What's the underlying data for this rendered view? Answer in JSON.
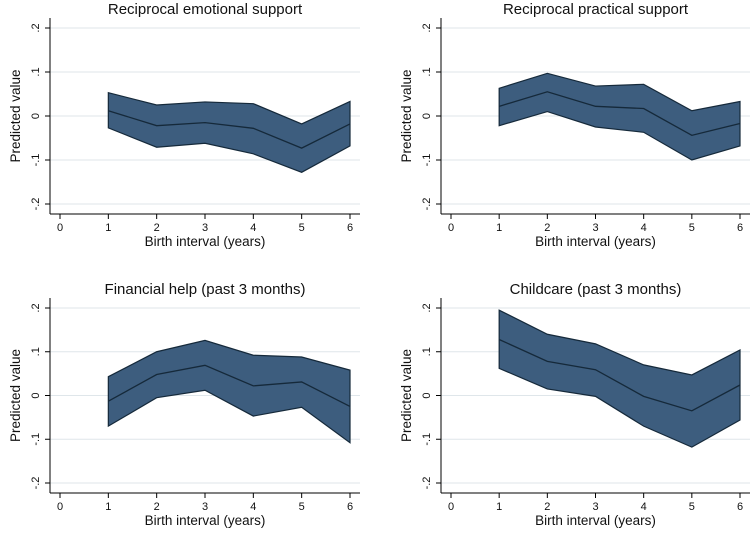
{
  "chart_data": [
    {
      "type": "area",
      "title": "Reciprocal emotional support",
      "xlabel": "Birth interval (years)",
      "ylabel": "Predicted value",
      "x_ticks": [
        0,
        1,
        2,
        3,
        4,
        5,
        6
      ],
      "x_tick_labels": [
        "0",
        "1",
        "2",
        "3",
        "4",
        "5",
        "6"
      ],
      "y_ticks": [
        -0.2,
        -0.1,
        0,
        0.1,
        0.2
      ],
      "y_tick_labels": [
        "-.2",
        "-.1",
        "0",
        ".1",
        ".2"
      ],
      "xlim": [
        0,
        6
      ],
      "ylim": [
        -0.2,
        0.2
      ],
      "grid": true,
      "band_color": "#3d5d7e",
      "line_color": "#15293a",
      "series": [
        {
          "x": [
            1,
            2,
            3,
            4,
            5,
            6
          ],
          "estimate": [
            0.012,
            -0.022,
            -0.015,
            -0.028,
            -0.073,
            -0.018
          ],
          "lower": [
            -0.027,
            -0.071,
            -0.062,
            -0.086,
            -0.128,
            -0.068
          ],
          "upper": [
            0.053,
            0.025,
            0.032,
            0.028,
            -0.018,
            0.033
          ]
        }
      ]
    },
    {
      "type": "area",
      "title": "Reciprocal practical support",
      "xlabel": "Birth interval (years)",
      "ylabel": "Predicted value",
      "x_ticks": [
        0,
        1,
        2,
        3,
        4,
        5,
        6
      ],
      "x_tick_labels": [
        "0",
        "1",
        "2",
        "3",
        "4",
        "5",
        "6"
      ],
      "y_ticks": [
        -0.2,
        -0.1,
        0,
        0.1,
        0.2
      ],
      "y_tick_labels": [
        "-.2",
        "-.1",
        "0",
        ".1",
        ".2"
      ],
      "xlim": [
        0,
        6
      ],
      "ylim": [
        -0.2,
        0.2
      ],
      "grid": true,
      "band_color": "#3d5d7e",
      "line_color": "#15293a",
      "series": [
        {
          "x": [
            1,
            2,
            3,
            4,
            5,
            6
          ],
          "estimate": [
            0.022,
            0.055,
            0.022,
            0.017,
            -0.044,
            -0.017
          ],
          "lower": [
            -0.022,
            0.01,
            -0.025,
            -0.037,
            -0.1,
            -0.068
          ],
          "upper": [
            0.063,
            0.097,
            0.068,
            0.072,
            0.012,
            0.033
          ]
        }
      ]
    },
    {
      "type": "area",
      "title": "Financial help (past 3 months)",
      "xlabel": "Birth interval (years)",
      "ylabel": "Predicted value",
      "x_ticks": [
        0,
        1,
        2,
        3,
        4,
        5,
        6
      ],
      "x_tick_labels": [
        "0",
        "1",
        "2",
        "3",
        "4",
        "5",
        "6"
      ],
      "y_ticks": [
        -0.2,
        -0.1,
        0,
        0.1,
        0.2
      ],
      "y_tick_labels": [
        "-.2",
        "-.1",
        "0",
        ".1",
        ".2"
      ],
      "xlim": [
        0,
        6
      ],
      "ylim": [
        -0.2,
        0.2
      ],
      "grid": true,
      "band_color": "#3d5d7e",
      "line_color": "#15293a",
      "series": [
        {
          "x": [
            1,
            2,
            3,
            4,
            5,
            6
          ],
          "estimate": [
            -0.013,
            0.048,
            0.069,
            0.022,
            0.031,
            -0.025
          ],
          "lower": [
            -0.07,
            -0.005,
            0.012,
            -0.047,
            -0.027,
            -0.108
          ],
          "upper": [
            0.043,
            0.1,
            0.126,
            0.092,
            0.088,
            0.058
          ]
        }
      ]
    },
    {
      "type": "area",
      "title": "Childcare (past 3 months)",
      "xlabel": "Birth interval (years)",
      "ylabel": "Predicted value",
      "x_ticks": [
        0,
        1,
        2,
        3,
        4,
        5,
        6
      ],
      "x_tick_labels": [
        "0",
        "1",
        "2",
        "3",
        "4",
        "5",
        "6"
      ],
      "y_ticks": [
        -0.2,
        -0.1,
        0,
        0.1,
        0.2
      ],
      "y_tick_labels": [
        "-.2",
        "-.1",
        "0",
        ".1",
        ".2"
      ],
      "xlim": [
        0,
        6
      ],
      "ylim": [
        -0.2,
        0.2
      ],
      "grid": true,
      "band_color": "#3d5d7e",
      "line_color": "#15293a",
      "series": [
        {
          "x": [
            1,
            2,
            3,
            4,
            5,
            6
          ],
          "estimate": [
            0.128,
            0.078,
            0.059,
            -0.002,
            -0.035,
            0.024
          ],
          "lower": [
            0.062,
            0.015,
            -0.002,
            -0.07,
            -0.118,
            -0.056
          ],
          "upper": [
            0.195,
            0.14,
            0.118,
            0.07,
            0.047,
            0.104
          ]
        }
      ]
    }
  ]
}
